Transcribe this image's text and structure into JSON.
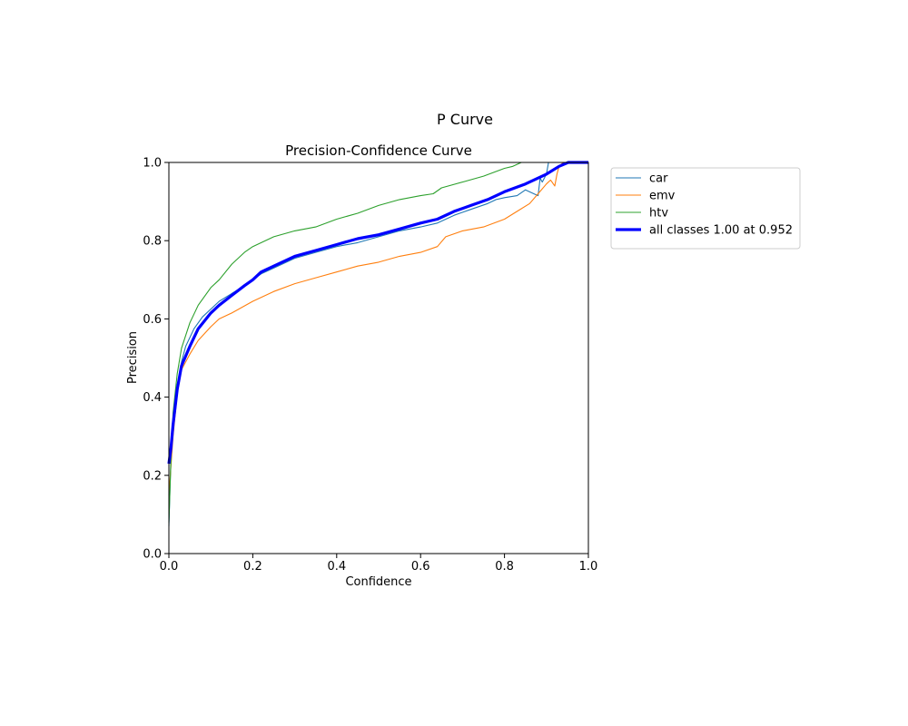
{
  "figure": {
    "suptitle": "P Curve"
  },
  "chart_data": {
    "type": "line",
    "title": "Precision-Confidence Curve",
    "xlabel": "Confidence",
    "ylabel": "Precision",
    "xlim": [
      0,
      1
    ],
    "ylim": [
      0,
      1
    ],
    "xticks": [
      "0.0",
      "0.2",
      "0.4",
      "0.6",
      "0.8",
      "1.0"
    ],
    "yticks": [
      "0.0",
      "0.2",
      "0.4",
      "0.6",
      "0.8",
      "1.0"
    ],
    "grid": false,
    "legend_position": "outside-right",
    "series": [
      {
        "name": "car",
        "color": "#1f77b4",
        "stroke": "thin",
        "points": [
          [
            0,
            0.07
          ],
          [
            0.005,
            0.25
          ],
          [
            0.01,
            0.32
          ],
          [
            0.02,
            0.42
          ],
          [
            0.03,
            0.49
          ],
          [
            0.04,
            0.53
          ],
          [
            0.06,
            0.575
          ],
          [
            0.08,
            0.605
          ],
          [
            0.1,
            0.625
          ],
          [
            0.12,
            0.645
          ],
          [
            0.15,
            0.665
          ],
          [
            0.18,
            0.685
          ],
          [
            0.2,
            0.7
          ],
          [
            0.22,
            0.715
          ],
          [
            0.25,
            0.73
          ],
          [
            0.3,
            0.755
          ],
          [
            0.35,
            0.77
          ],
          [
            0.4,
            0.785
          ],
          [
            0.45,
            0.795
          ],
          [
            0.5,
            0.81
          ],
          [
            0.55,
            0.825
          ],
          [
            0.6,
            0.835
          ],
          [
            0.64,
            0.845
          ],
          [
            0.68,
            0.865
          ],
          [
            0.72,
            0.88
          ],
          [
            0.76,
            0.895
          ],
          [
            0.78,
            0.905
          ],
          [
            0.8,
            0.91
          ],
          [
            0.83,
            0.915
          ],
          [
            0.85,
            0.93
          ],
          [
            0.87,
            0.92
          ],
          [
            0.88,
            0.915
          ],
          [
            0.885,
            0.96
          ],
          [
            0.89,
            0.95
          ],
          [
            0.9,
            0.97
          ],
          [
            0.905,
            1.0
          ],
          [
            1.0,
            1.0
          ]
        ]
      },
      {
        "name": "emv",
        "color": "#ff7f0e",
        "stroke": "thin",
        "points": [
          [
            0,
            0.15
          ],
          [
            0.01,
            0.3
          ],
          [
            0.02,
            0.41
          ],
          [
            0.03,
            0.47
          ],
          [
            0.05,
            0.51
          ],
          [
            0.07,
            0.545
          ],
          [
            0.1,
            0.58
          ],
          [
            0.12,
            0.6
          ],
          [
            0.15,
            0.615
          ],
          [
            0.2,
            0.645
          ],
          [
            0.25,
            0.67
          ],
          [
            0.3,
            0.69
          ],
          [
            0.35,
            0.705
          ],
          [
            0.4,
            0.72
          ],
          [
            0.45,
            0.735
          ],
          [
            0.5,
            0.745
          ],
          [
            0.55,
            0.76
          ],
          [
            0.6,
            0.77
          ],
          [
            0.64,
            0.785
          ],
          [
            0.66,
            0.81
          ],
          [
            0.7,
            0.825
          ],
          [
            0.75,
            0.835
          ],
          [
            0.8,
            0.855
          ],
          [
            0.83,
            0.875
          ],
          [
            0.86,
            0.895
          ],
          [
            0.88,
            0.92
          ],
          [
            0.9,
            0.945
          ],
          [
            0.91,
            0.955
          ],
          [
            0.92,
            0.94
          ],
          [
            0.925,
            0.97
          ],
          [
            0.93,
            0.99
          ],
          [
            0.94,
            1.0
          ],
          [
            1.0,
            1.0
          ]
        ]
      },
      {
        "name": "htv",
        "color": "#2ca02c",
        "stroke": "thin",
        "points": [
          [
            0,
            0.08
          ],
          [
            0.005,
            0.24
          ],
          [
            0.01,
            0.36
          ],
          [
            0.02,
            0.46
          ],
          [
            0.03,
            0.525
          ],
          [
            0.05,
            0.59
          ],
          [
            0.07,
            0.635
          ],
          [
            0.1,
            0.68
          ],
          [
            0.12,
            0.7
          ],
          [
            0.15,
            0.74
          ],
          [
            0.18,
            0.77
          ],
          [
            0.2,
            0.785
          ],
          [
            0.25,
            0.81
          ],
          [
            0.3,
            0.825
          ],
          [
            0.35,
            0.835
          ],
          [
            0.4,
            0.855
          ],
          [
            0.45,
            0.87
          ],
          [
            0.5,
            0.89
          ],
          [
            0.55,
            0.905
          ],
          [
            0.6,
            0.915
          ],
          [
            0.63,
            0.92
          ],
          [
            0.65,
            0.935
          ],
          [
            0.7,
            0.95
          ],
          [
            0.75,
            0.965
          ],
          [
            0.8,
            0.985
          ],
          [
            0.82,
            0.99
          ],
          [
            0.84,
            1.0
          ],
          [
            1.0,
            1.0
          ]
        ]
      },
      {
        "name": "all classes 1.00 at 0.952",
        "color": "#0000ff",
        "stroke": "thick",
        "points": [
          [
            0,
            0.23
          ],
          [
            0.005,
            0.27
          ],
          [
            0.01,
            0.33
          ],
          [
            0.02,
            0.42
          ],
          [
            0.03,
            0.48
          ],
          [
            0.05,
            0.53
          ],
          [
            0.07,
            0.575
          ],
          [
            0.1,
            0.615
          ],
          [
            0.12,
            0.635
          ],
          [
            0.15,
            0.66
          ],
          [
            0.18,
            0.685
          ],
          [
            0.2,
            0.7
          ],
          [
            0.22,
            0.72
          ],
          [
            0.25,
            0.735
          ],
          [
            0.3,
            0.76
          ],
          [
            0.35,
            0.775
          ],
          [
            0.4,
            0.79
          ],
          [
            0.45,
            0.805
          ],
          [
            0.5,
            0.815
          ],
          [
            0.55,
            0.83
          ],
          [
            0.6,
            0.845
          ],
          [
            0.64,
            0.855
          ],
          [
            0.68,
            0.875
          ],
          [
            0.72,
            0.89
          ],
          [
            0.76,
            0.905
          ],
          [
            0.8,
            0.925
          ],
          [
            0.85,
            0.945
          ],
          [
            0.9,
            0.97
          ],
          [
            0.93,
            0.99
          ],
          [
            0.952,
            1.0
          ],
          [
            1.0,
            1.0
          ]
        ]
      }
    ]
  }
}
